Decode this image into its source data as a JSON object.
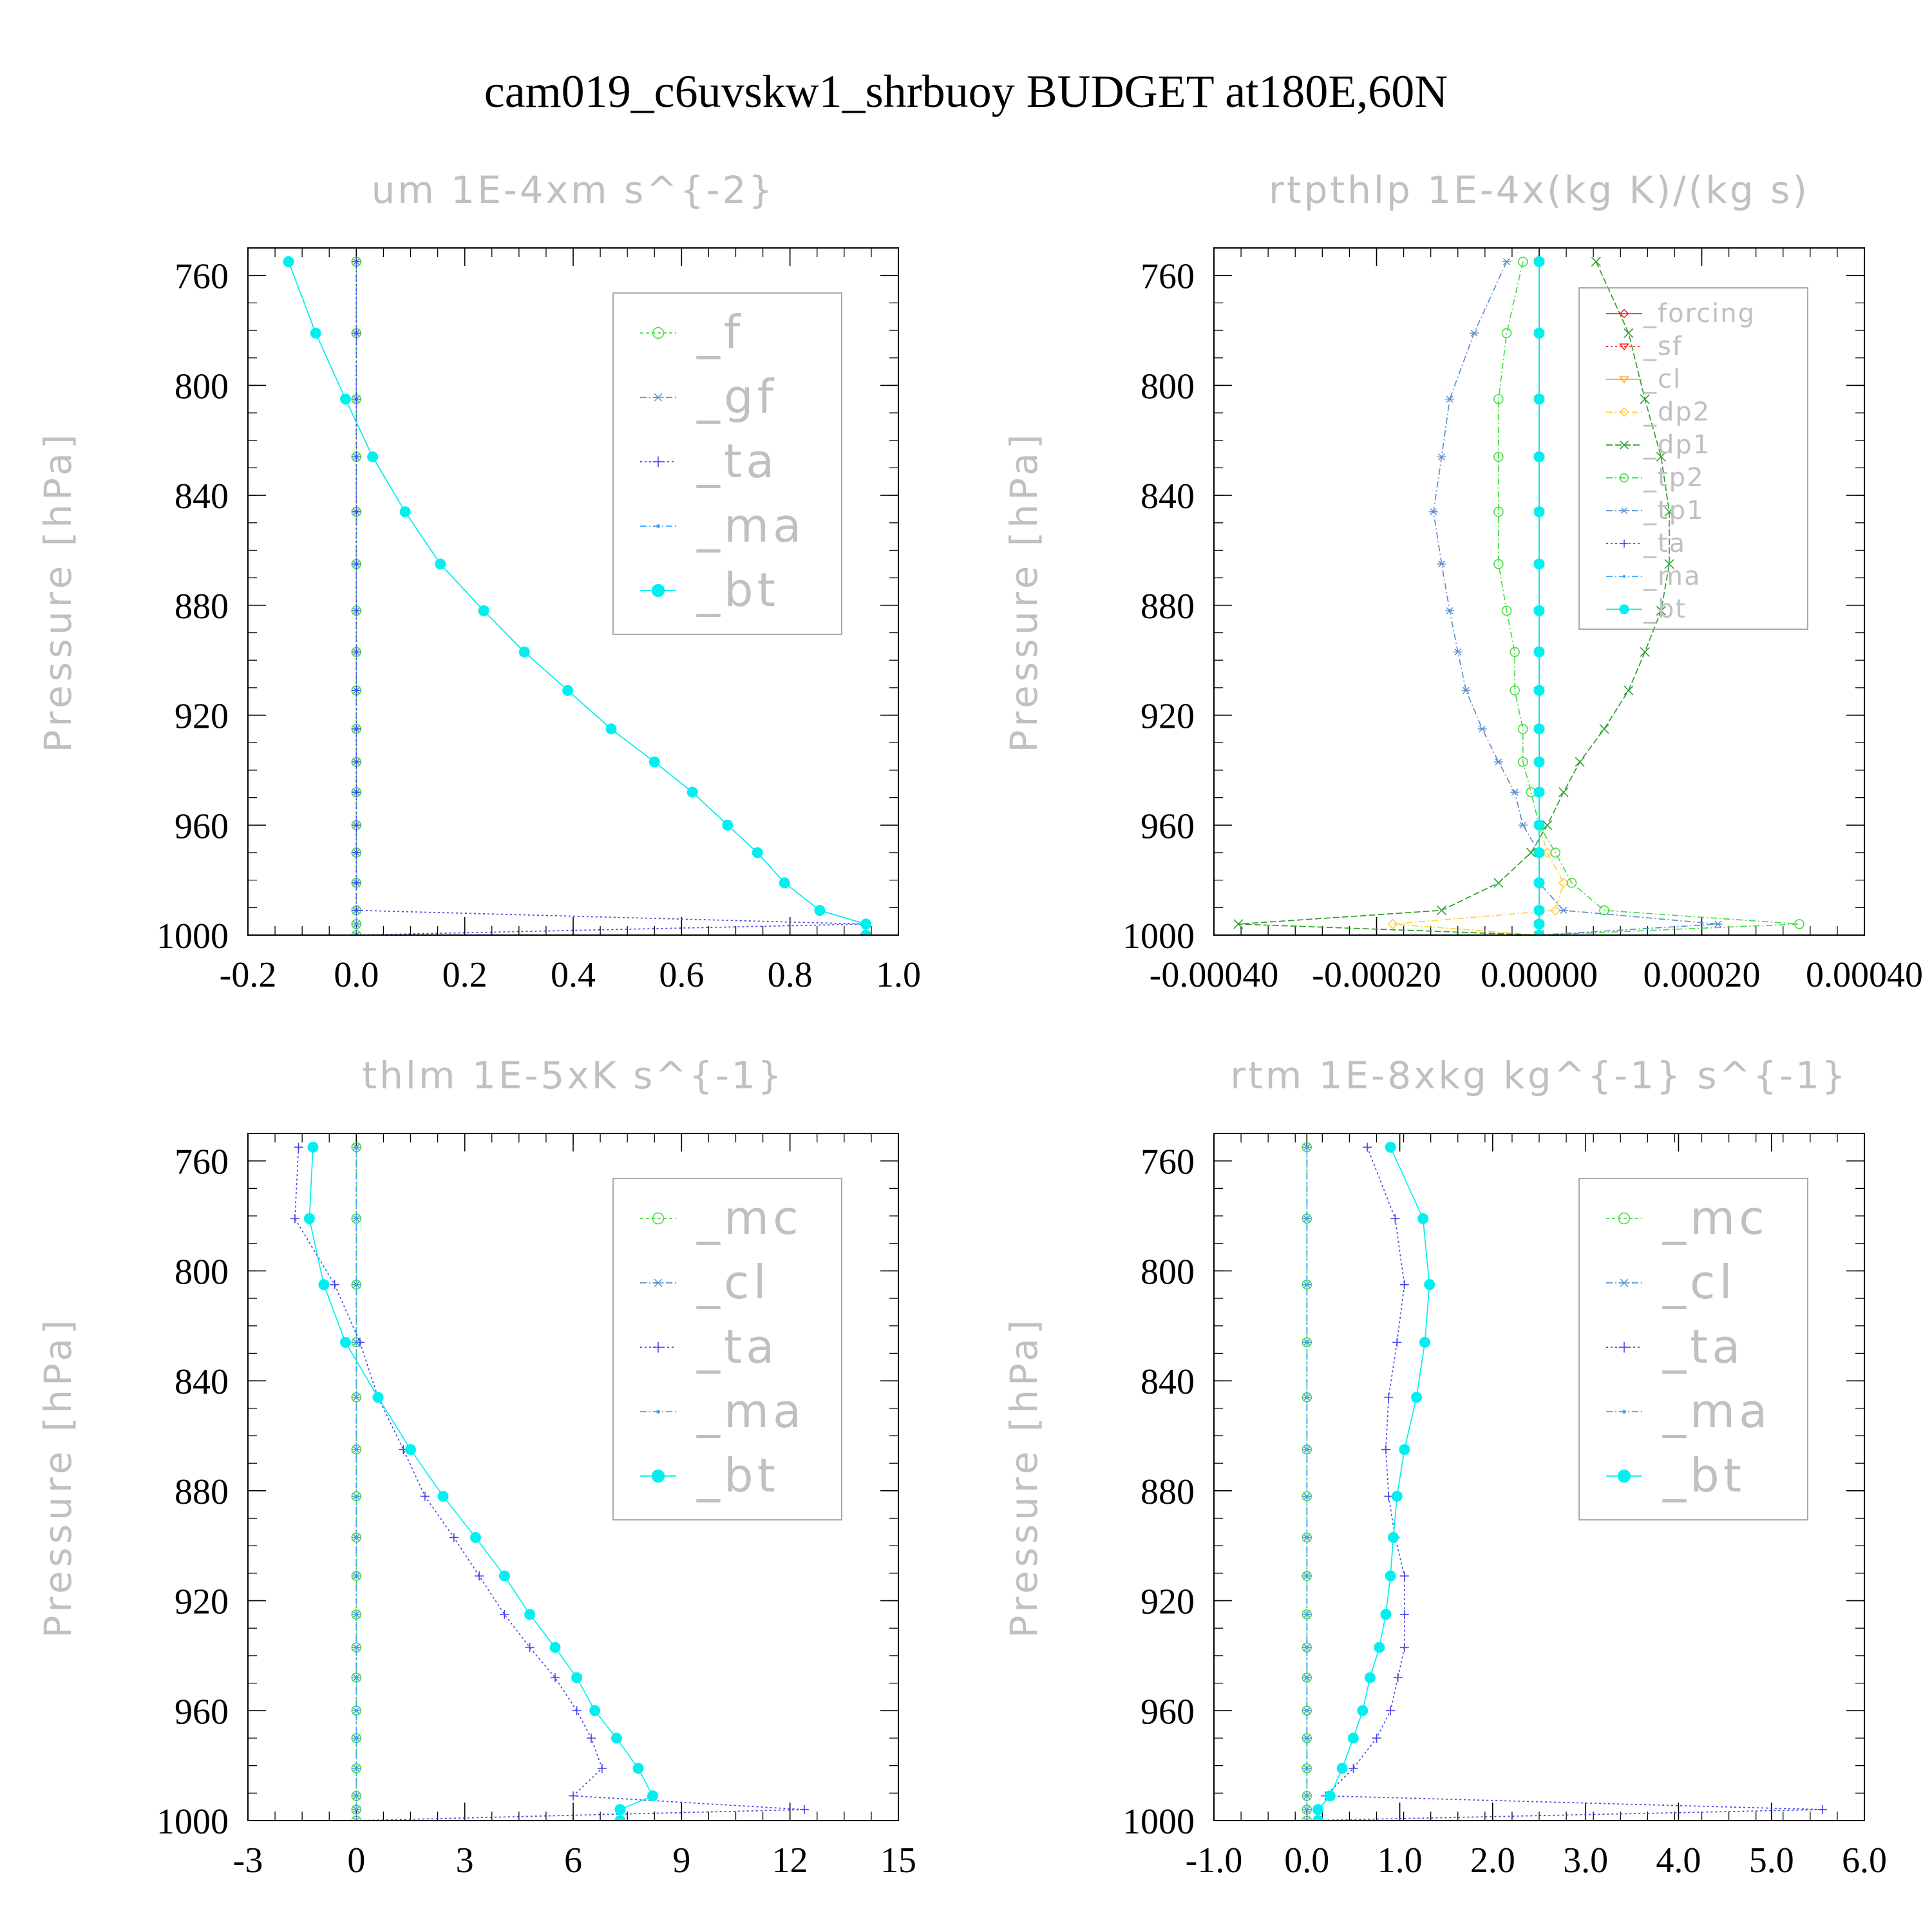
{
  "title": "cam019_c6uvskw1_shrbuoy  BUDGET at180E,60N",
  "colors": {
    "axis": "#000000",
    "faint_text": "#c0c0c0",
    "legend_box": "#a0a0a0",
    "green": "#44dd44",
    "steel": "#5c8fd0",
    "blue": "#4444ee",
    "azure": "#3aa6ff",
    "cyan": "#00f0f0",
    "red": "#ff2020",
    "orange": "#ffaa22",
    "yellow": "#ffd23c",
    "darkgreen": "#2ea02e"
  },
  "chart_data": [
    {
      "type": "line",
      "title": "um   1E-4xm s^{-2}",
      "ylabel": "Pressure [hPa]",
      "yaxis": "pressure (inverted)",
      "ylim": [
        750,
        1000
      ],
      "yticks": [
        760,
        800,
        840,
        880,
        920,
        960,
        1000
      ],
      "ytick_labels": [
        "760",
        "800",
        "840",
        "880",
        "920",
        "960",
        "1000"
      ],
      "xlim": [
        -0.2,
        1.0
      ],
      "xticks": [
        -0.2,
        0.0,
        0.2,
        0.4,
        0.6,
        0.8,
        1.0
      ],
      "xtick_labels": [
        "-0.2",
        "0.0",
        "0.2",
        "0.4",
        "0.6",
        "0.8",
        "1.0"
      ],
      "legend_position": "upper-right",
      "levels": [
        755,
        781,
        805,
        826,
        846,
        865,
        882,
        897,
        911,
        925,
        937,
        948,
        960,
        970,
        981,
        991,
        996,
        1000
      ],
      "series": [
        {
          "name": "_f",
          "color": "green",
          "marker": "circle-open",
          "dash": "5,4",
          "values": [
            0,
            0,
            0,
            0,
            0,
            0,
            0,
            0,
            0,
            0,
            0,
            0,
            0,
            0,
            0,
            0,
            0,
            0
          ]
        },
        {
          "name": "_gf",
          "color": "steel",
          "marker": "star",
          "dash": "10,4,2,4",
          "values": [
            0,
            0,
            0,
            0,
            0,
            0,
            0,
            0,
            0,
            0,
            0,
            0,
            0,
            0,
            0,
            0,
            0,
            0
          ]
        },
        {
          "name": "_ta",
          "color": "blue",
          "marker": "plus",
          "dash": "3,4",
          "values": [
            0,
            0,
            0,
            0,
            0,
            0,
            0,
            0,
            0,
            0,
            0,
            0,
            0,
            0,
            0,
            0,
            0.94,
            0
          ]
        },
        {
          "name": "_ma",
          "color": "azure",
          "marker": "dot",
          "dash": "10,4,2,4",
          "values": [
            -0.125,
            -0.075,
            -0.02,
            0.03,
            0.09,
            0.155,
            0.235,
            0.31,
            0.39,
            0.47,
            0.55,
            0.62,
            0.685,
            0.74,
            0.79,
            0.855,
            0.94,
            0.94
          ]
        },
        {
          "name": "_bt",
          "color": "cyan",
          "marker": "filled",
          "dash": "",
          "values": [
            -0.125,
            -0.075,
            -0.02,
            0.03,
            0.09,
            0.155,
            0.235,
            0.31,
            0.39,
            0.47,
            0.55,
            0.62,
            0.685,
            0.74,
            0.79,
            0.855,
            0.94,
            0.94
          ]
        }
      ]
    },
    {
      "type": "line",
      "title": "rtpthlp   1E-4x(kg K)/(kg s)",
      "ylabel": "Pressure [hPa]",
      "yaxis": "pressure (inverted)",
      "ylim": [
        750,
        1000
      ],
      "yticks": [
        760,
        800,
        840,
        880,
        920,
        960,
        1000
      ],
      "ytick_labels": [
        "760",
        "800",
        "840",
        "880",
        "920",
        "960",
        "1000"
      ],
      "xlim": [
        -0.0004,
        0.0004
      ],
      "xticks": [
        -0.0004,
        -0.0002,
        0.0,
        0.0002,
        0.0004
      ],
      "xtick_labels": [
        "-0.00040",
        "-0.00020",
        "0.00000",
        "0.00020",
        "0.00040"
      ],
      "legend_position": "upper-right",
      "levels": [
        755,
        781,
        805,
        826,
        846,
        865,
        882,
        897,
        911,
        925,
        937,
        948,
        960,
        970,
        981,
        991,
        996,
        1000
      ],
      "series": [
        {
          "name": "_forcing",
          "color": "red",
          "marker": "diamond",
          "dash": "",
          "values": [
            0,
            0,
            0,
            0,
            0,
            0,
            0,
            0,
            0,
            0,
            0,
            0,
            0,
            0,
            0,
            0,
            0,
            0
          ]
        },
        {
          "name": "_sf",
          "color": "red",
          "marker": "triangle",
          "dash": "3,4",
          "values": [
            0,
            0,
            0,
            0,
            0,
            0,
            0,
            0,
            0,
            0,
            0,
            0,
            0,
            0,
            0,
            0,
            0,
            0
          ]
        },
        {
          "name": "_cl",
          "color": "orange",
          "marker": "triangle",
          "dash": "",
          "values": [
            0,
            0,
            0,
            0,
            0,
            0,
            0,
            0,
            0,
            0,
            0,
            0,
            0,
            0,
            0,
            0,
            0,
            0
          ]
        },
        {
          "name": "_dp2",
          "color": "yellow",
          "marker": "diamond",
          "dash": "10,4,2,4",
          "values": [
            0,
            0,
            0,
            0,
            0,
            0,
            0,
            0,
            0,
            0,
            0,
            0.0,
            0.0,
            1e-05,
            3e-05,
            2e-05,
            -0.00018,
            0
          ]
        },
        {
          "name": "_dp1",
          "color": "darkgreen",
          "marker": "cross",
          "dash": "10,4",
          "values": [
            7e-05,
            0.00011,
            0.00013,
            0.00015,
            0.00016,
            0.00016,
            0.00015,
            0.00013,
            0.00011,
            8e-05,
            5e-05,
            3e-05,
            1e-05,
            -1e-05,
            -5e-05,
            -0.00012,
            -0.00037,
            0
          ]
        },
        {
          "name": "_tp2",
          "color": "green",
          "marker": "circle-open",
          "dash": "10,4,2,4",
          "values": [
            -2e-05,
            -4e-05,
            -5e-05,
            -5e-05,
            -5e-05,
            -5e-05,
            -4e-05,
            -3e-05,
            -3e-05,
            -2e-05,
            -2e-05,
            -1e-05,
            0,
            2e-05,
            4e-05,
            8e-05,
            0.00032,
            0
          ]
        },
        {
          "name": "_tp1",
          "color": "steel",
          "marker": "star",
          "dash": "10,4,2,4",
          "values": [
            -4e-05,
            -8e-05,
            -0.00011,
            -0.00012,
            -0.00013,
            -0.00012,
            -0.00011,
            -0.0001,
            -9e-05,
            -7e-05,
            -5e-05,
            -3e-05,
            -2e-05,
            0,
            0,
            3e-05,
            0.00022,
            0
          ]
        },
        {
          "name": "_ta",
          "color": "blue",
          "marker": "plus",
          "dash": "3,4",
          "values": [
            0,
            0,
            0,
            0,
            0,
            0,
            0,
            0,
            0,
            0,
            0,
            0,
            0,
            0,
            0,
            0,
            0,
            0
          ]
        },
        {
          "name": "_ma",
          "color": "azure",
          "marker": "dot",
          "dash": "10,4,2,4",
          "values": [
            0,
            0,
            0,
            0,
            0,
            0,
            0,
            0,
            0,
            0,
            0,
            0,
            0,
            0,
            0,
            0,
            0,
            0
          ]
        },
        {
          "name": "_bt",
          "color": "cyan",
          "marker": "filled",
          "dash": "",
          "values": [
            0,
            0,
            0,
            0,
            0,
            0,
            0,
            0,
            0,
            0,
            0,
            0,
            0,
            0,
            0,
            0,
            0,
            0
          ]
        }
      ]
    },
    {
      "type": "line",
      "title": "thlm   1E-5xK s^{-1}",
      "ylabel": "Pressure [hPa]",
      "yaxis": "pressure (inverted)",
      "ylim": [
        750,
        1000
      ],
      "yticks": [
        760,
        800,
        840,
        880,
        920,
        960,
        1000
      ],
      "ytick_labels": [
        "760",
        "800",
        "840",
        "880",
        "920",
        "960",
        "1000"
      ],
      "xlim": [
        -3,
        15
      ],
      "xticks": [
        -3,
        0,
        3,
        6,
        9,
        12,
        15
      ],
      "xtick_labels": [
        "-3",
        "0",
        "3",
        "6",
        "9",
        "12",
        "15"
      ],
      "legend_position": "upper-right",
      "levels": [
        755,
        781,
        805,
        826,
        846,
        865,
        882,
        897,
        911,
        925,
        937,
        948,
        960,
        970,
        981,
        991,
        996,
        1000
      ],
      "series": [
        {
          "name": "_mc",
          "color": "green",
          "marker": "circle-open",
          "dash": "5,4",
          "values": [
            0,
            0,
            0,
            0,
            0,
            0,
            0,
            0,
            0,
            0,
            0,
            0,
            0,
            0,
            0,
            0,
            0,
            0
          ]
        },
        {
          "name": "_cl",
          "color": "steel",
          "marker": "star",
          "dash": "10,4,2,4",
          "values": [
            0,
            0,
            0,
            0,
            0,
            0,
            0,
            0,
            0,
            0,
            0,
            0,
            0,
            0,
            0,
            0,
            0,
            0
          ]
        },
        {
          "name": "_ta",
          "color": "blue",
          "marker": "plus",
          "dash": "3,4",
          "values": [
            -1.6,
            -1.7,
            -0.6,
            0.1,
            0.6,
            1.3,
            1.9,
            2.7,
            3.4,
            4.1,
            4.8,
            5.5,
            6.1,
            6.5,
            6.8,
            6.0,
            12.4,
            0
          ]
        },
        {
          "name": "_ma",
          "color": "azure",
          "marker": "dot",
          "dash": "10,4,2,4",
          "values": [
            0,
            0,
            0,
            0,
            0,
            0,
            0,
            0,
            0,
            0,
            0,
            0,
            0,
            0,
            0,
            0,
            0,
            0
          ]
        },
        {
          "name": "_bt",
          "color": "cyan",
          "marker": "filled",
          "dash": "",
          "values": [
            -1.2,
            -1.3,
            -0.9,
            -0.3,
            0.6,
            1.5,
            2.4,
            3.3,
            4.1,
            4.8,
            5.5,
            6.1,
            6.6,
            7.2,
            7.8,
            8.2,
            7.3,
            7.3
          ]
        }
      ]
    },
    {
      "type": "line",
      "title": "rtm   1E-8xkg kg^{-1} s^{-1}",
      "ylabel": "Pressure [hPa]",
      "yaxis": "pressure (inverted)",
      "ylim": [
        750,
        1000
      ],
      "yticks": [
        760,
        800,
        840,
        880,
        920,
        960,
        1000
      ],
      "ytick_labels": [
        "760",
        "800",
        "840",
        "880",
        "920",
        "960",
        "1000"
      ],
      "xlim": [
        -1.0,
        6.0
      ],
      "xticks": [
        -1.0,
        0.0,
        1.0,
        2.0,
        3.0,
        4.0,
        5.0,
        6.0
      ],
      "xtick_labels": [
        "-1.0",
        "0.0",
        "1.0",
        "2.0",
        "3.0",
        "4.0",
        "5.0",
        "6.0"
      ],
      "legend_position": "upper-right",
      "levels": [
        755,
        781,
        805,
        826,
        846,
        865,
        882,
        897,
        911,
        925,
        937,
        948,
        960,
        970,
        981,
        991,
        996,
        1000
      ],
      "series": [
        {
          "name": "_mc",
          "color": "green",
          "marker": "circle-open",
          "dash": "5,4",
          "values": [
            0,
            0,
            0,
            0,
            0,
            0,
            0,
            0,
            0,
            0,
            0,
            0,
            0,
            0,
            0,
            0,
            0,
            0
          ]
        },
        {
          "name": "_cl",
          "color": "steel",
          "marker": "star",
          "dash": "10,4,2,4",
          "values": [
            0,
            0,
            0,
            0,
            0,
            0,
            0,
            0,
            0,
            0,
            0,
            0,
            0,
            0,
            0,
            0,
            0,
            0
          ]
        },
        {
          "name": "_ta",
          "color": "blue",
          "marker": "plus",
          "dash": "3,4",
          "values": [
            0.65,
            0.95,
            1.05,
            0.97,
            0.88,
            0.85,
            0.88,
            0.95,
            1.05,
            1.05,
            1.05,
            0.98,
            0.9,
            0.75,
            0.5,
            0.2,
            5.55,
            0
          ]
        },
        {
          "name": "_ma",
          "color": "azure",
          "marker": "dot",
          "dash": "10,4,2,4",
          "values": [
            0,
            0,
            0,
            0,
            0,
            0,
            0,
            0,
            0,
            0,
            0,
            0,
            0,
            0,
            0,
            0,
            0,
            0
          ]
        },
        {
          "name": "_bt",
          "color": "cyan",
          "marker": "filled",
          "dash": "",
          "values": [
            0.9,
            1.25,
            1.32,
            1.27,
            1.18,
            1.05,
            0.97,
            0.93,
            0.9,
            0.85,
            0.78,
            0.68,
            0.6,
            0.5,
            0.38,
            0.25,
            0.12,
            0.12
          ]
        }
      ]
    }
  ]
}
